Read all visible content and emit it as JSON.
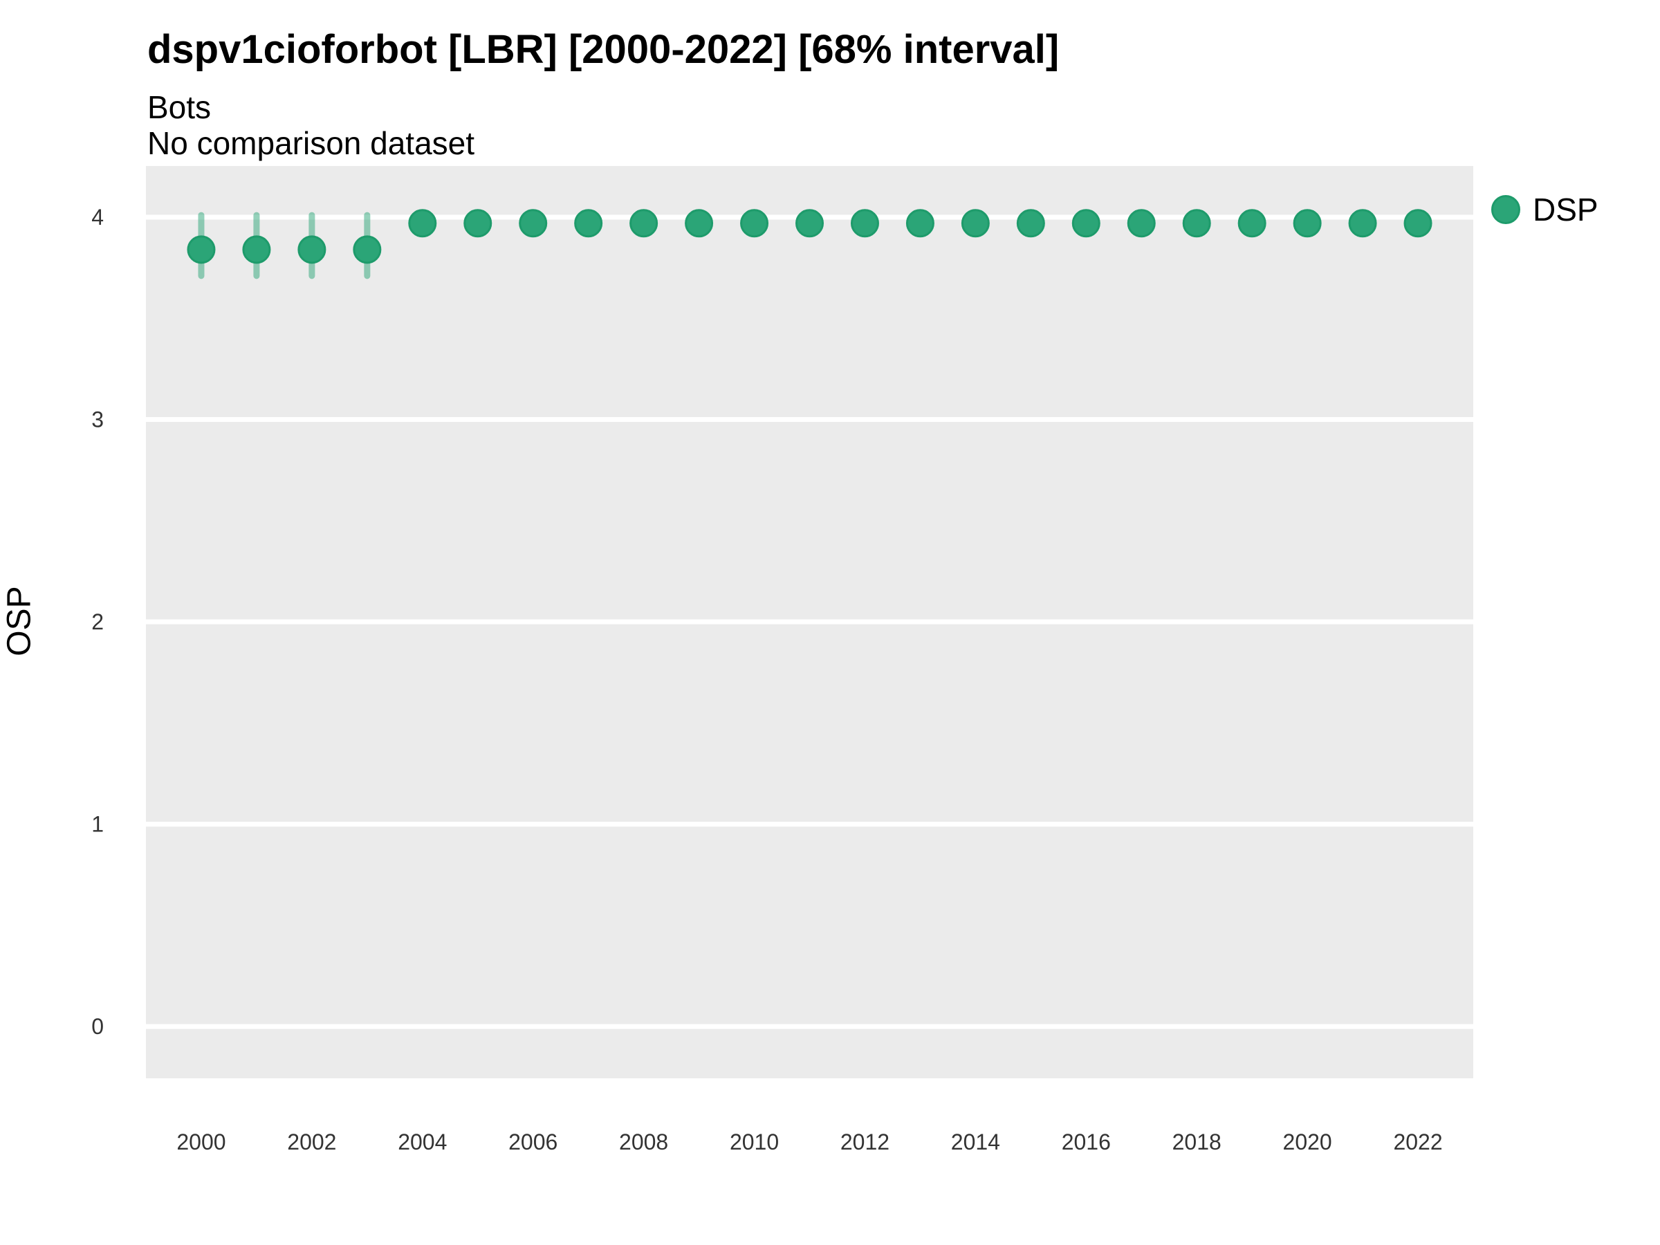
{
  "title": "dspv1cioforbot [LBR] [2000-2022] [68% interval]",
  "subtitle": "Bots",
  "note": "No comparison dataset",
  "legend": {
    "items": [
      {
        "label": "DSP",
        "color": "#2BA577"
      }
    ]
  },
  "axes": {
    "y_label": "OSP",
    "y_ticks": [
      0,
      1,
      2,
      3,
      4
    ],
    "x_ticks": [
      2000,
      2002,
      2004,
      2006,
      2008,
      2010,
      2012,
      2014,
      2016,
      2018,
      2020,
      2022
    ],
    "x_range": [
      1999.0,
      2023.0
    ],
    "y_range": [
      -0.256,
      4.253
    ]
  },
  "chart_data": {
    "type": "scatter",
    "subtype": "pointrange",
    "title": "dspv1cioforbot [LBR] [2000-2022] [68% interval]",
    "subtitle": "Bots",
    "note": "No comparison dataset",
    "xlabel": "",
    "ylabel": "OSP",
    "legend_position": "right",
    "grid": "horizontal-major-only",
    "interval_level": "68%",
    "x": [
      2000,
      2001,
      2002,
      2003,
      2004,
      2005,
      2006,
      2007,
      2008,
      2009,
      2010,
      2011,
      2012,
      2013,
      2014,
      2015,
      2016,
      2017,
      2018,
      2019,
      2020,
      2021,
      2022
    ],
    "series": [
      {
        "name": "DSP",
        "values": [
          3.84,
          3.84,
          3.84,
          3.84,
          3.97,
          3.97,
          3.97,
          3.97,
          3.97,
          3.97,
          3.97,
          3.97,
          3.97,
          3.97,
          3.97,
          3.97,
          3.97,
          3.97,
          3.97,
          3.97,
          3.97,
          3.97,
          3.97
        ],
        "lo": [
          3.71,
          3.71,
          3.71,
          3.71,
          3.95,
          3.95,
          3.95,
          3.95,
          3.95,
          3.95,
          3.95,
          3.95,
          3.95,
          3.95,
          3.95,
          3.95,
          3.95,
          3.95,
          3.95,
          3.95,
          3.95,
          3.95,
          3.95
        ],
        "hi": [
          4.01,
          4.01,
          4.01,
          4.01,
          3.99,
          3.99,
          3.99,
          3.99,
          3.99,
          3.99,
          3.99,
          3.99,
          3.99,
          3.99,
          3.99,
          3.99,
          3.99,
          3.99,
          3.99,
          3.99,
          3.99,
          3.99,
          3.99
        ]
      }
    ],
    "xlim": [
      1999.0,
      2023.0
    ],
    "ylim": [
      -0.256,
      4.253
    ]
  },
  "colors": {
    "point_fill": "#2BA577",
    "point_stroke": "#1E9B6B",
    "interval_bar": "rgba(43,165,119,0.5)",
    "panel_background": "#EBEBEB",
    "gridline": "#FFFFFF",
    "tick_text": "#333333",
    "page_background": "#FFFFFF"
  }
}
